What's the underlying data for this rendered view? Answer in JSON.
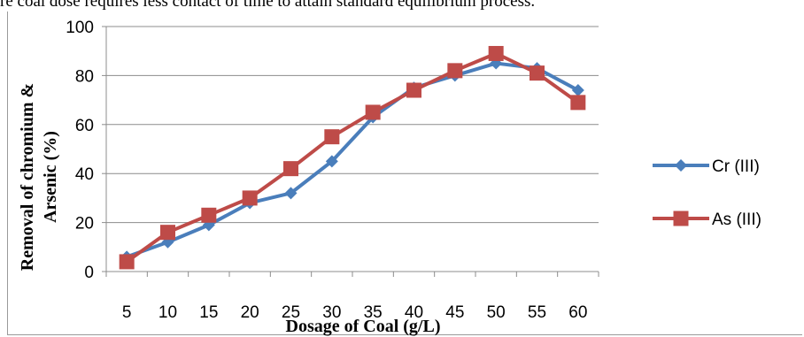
{
  "page": {
    "top_text": "re coal dose requires less contact of time to attain standard equilibrium process."
  },
  "chart_data": {
    "type": "line",
    "categories": [
      "5",
      "10",
      "15",
      "20",
      "25",
      "30",
      "35",
      "40",
      "45",
      "50",
      "55",
      "60"
    ],
    "series": [
      {
        "name": "Cr (III)",
        "color": "#4a7ebb",
        "marker": "diamond",
        "values": [
          6,
          12,
          19,
          28,
          32,
          45,
          63,
          75,
          80,
          85,
          83,
          74
        ]
      },
      {
        "name": "As (III)",
        "color": "#be4b48",
        "marker": "square",
        "values": [
          4,
          16,
          23,
          30,
          42,
          55,
          65,
          74,
          82,
          89,
          81,
          69
        ]
      }
    ],
    "ylim": [
      0,
      100
    ],
    "yticks": [
      0,
      20,
      40,
      60,
      80,
      100
    ],
    "xlabel": "Dosage of Coal (g/L)",
    "ylabel_line1": "Removal of chromium &",
    "ylabel_line2": "Arsenic (%)",
    "grid": true,
    "legend_position": "right"
  }
}
